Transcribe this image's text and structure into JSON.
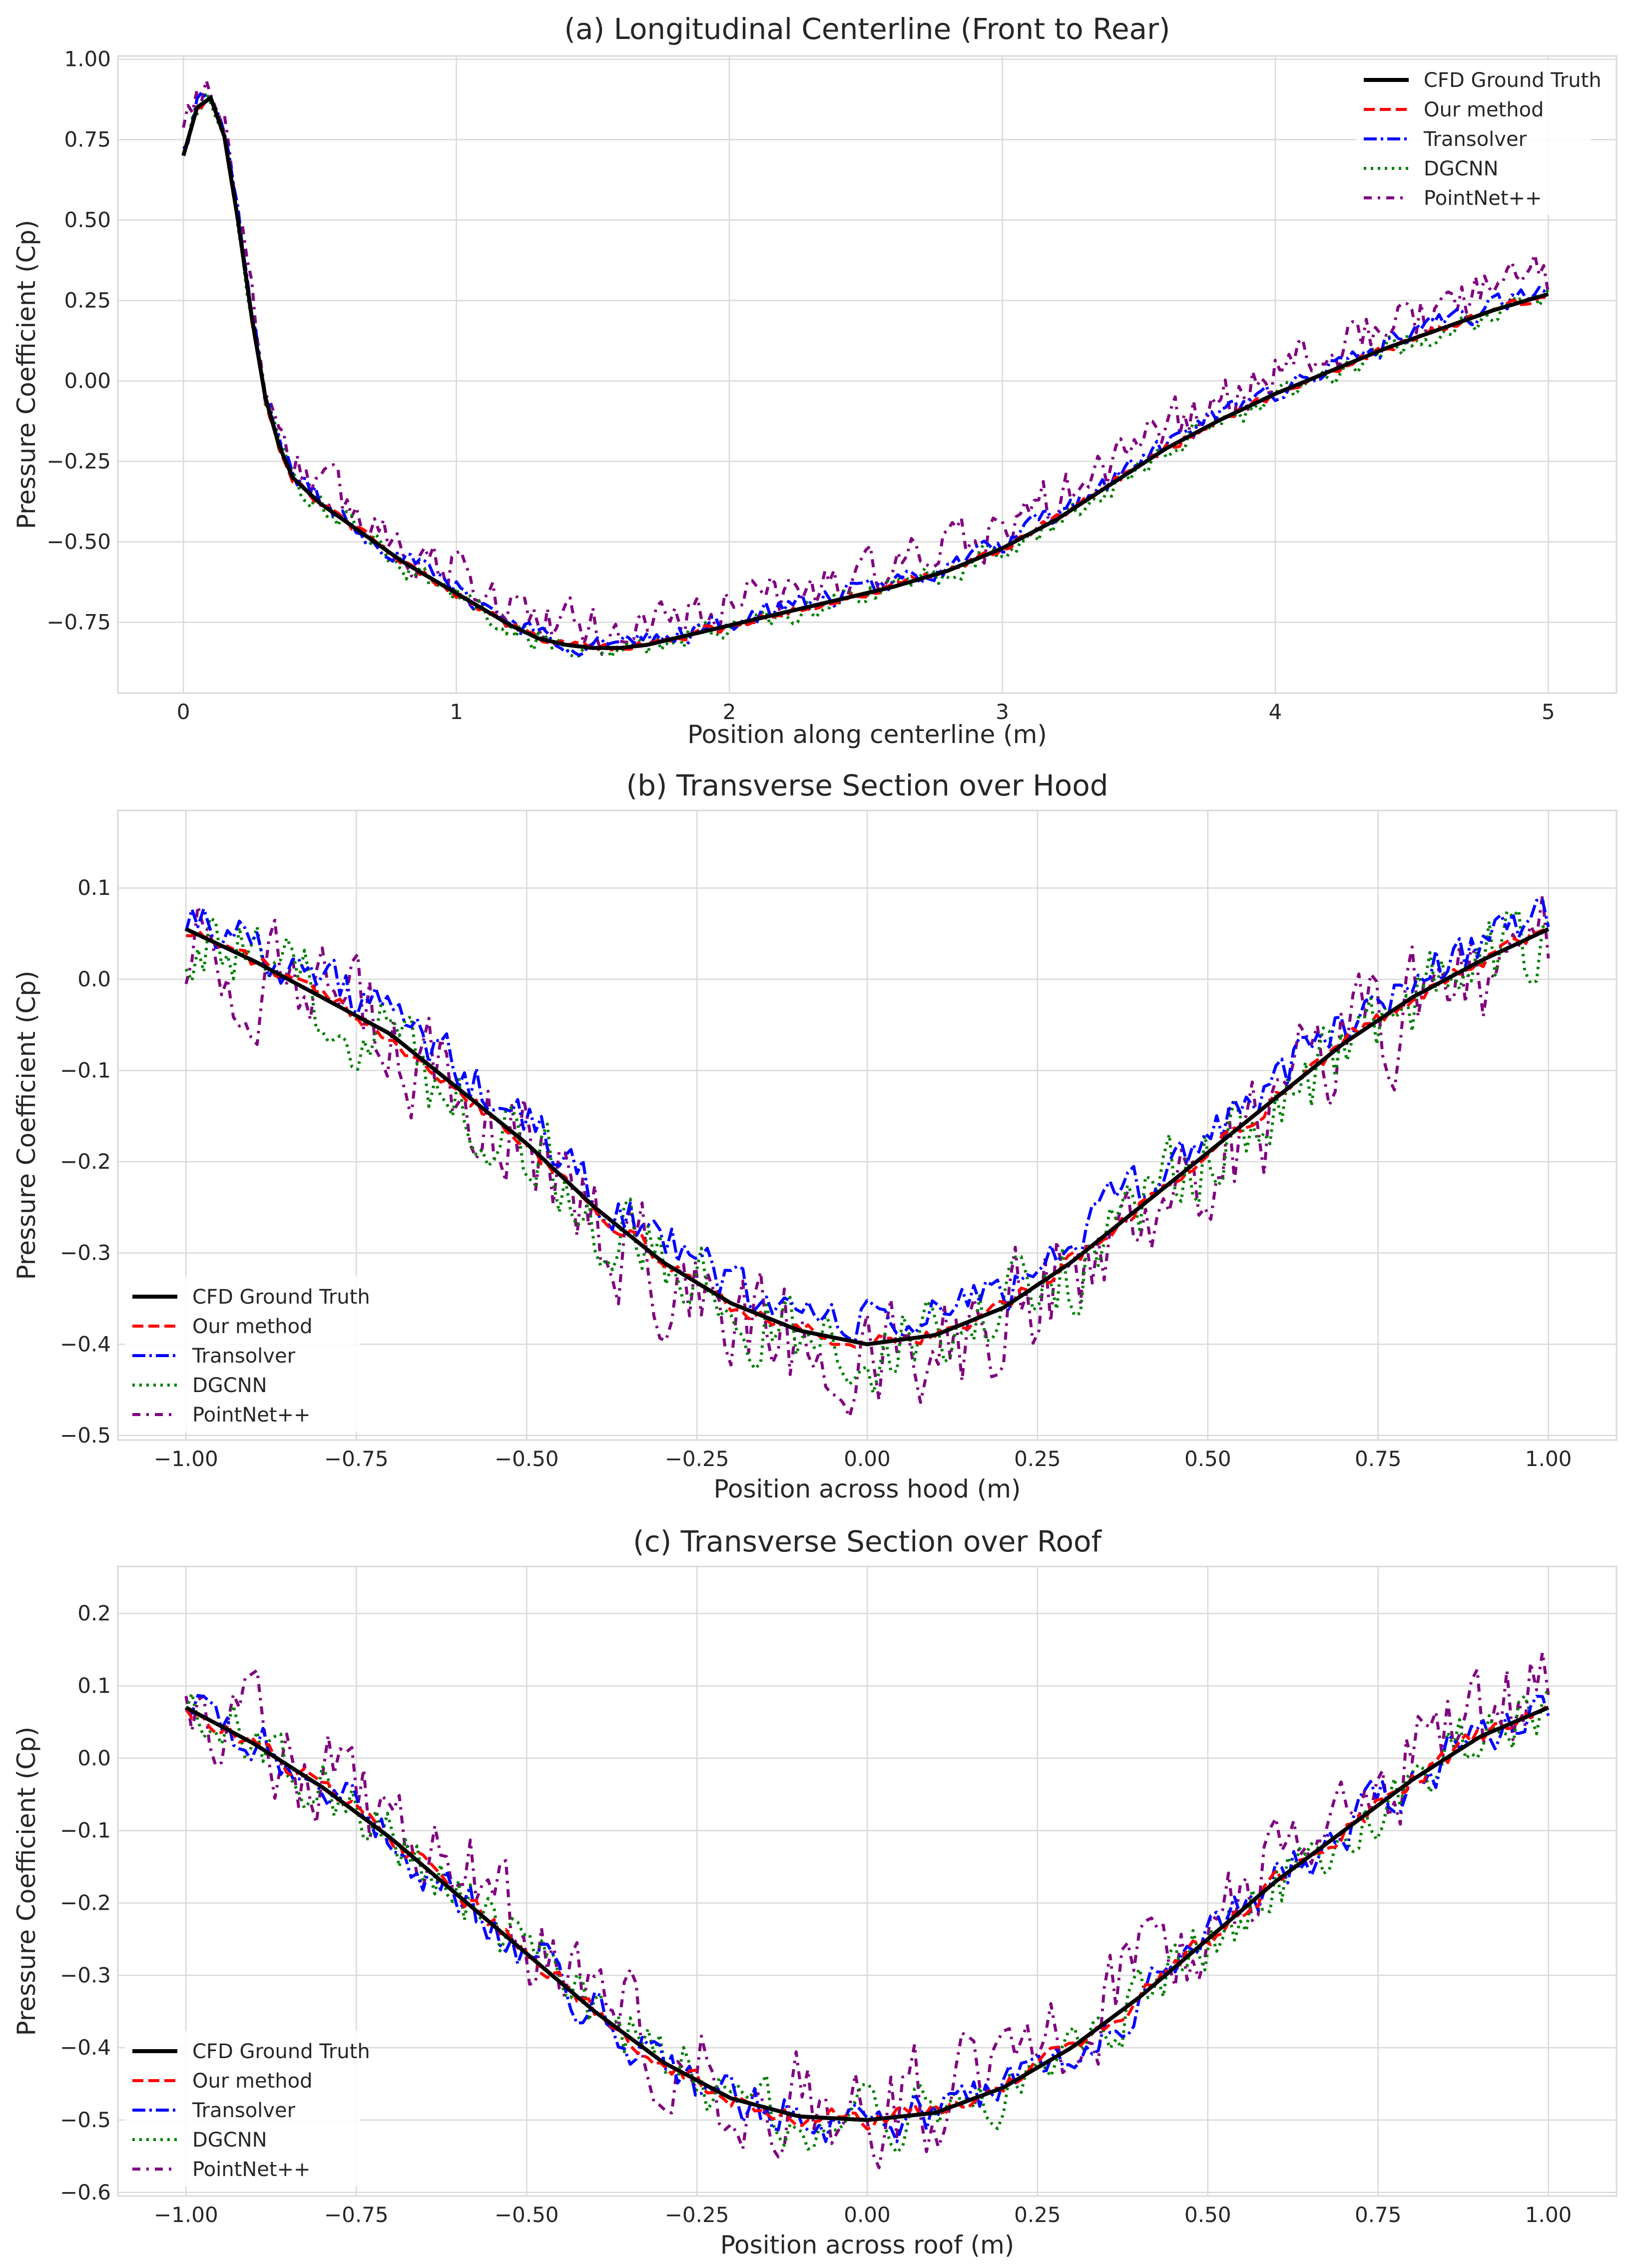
{
  "chart_data": [
    {
      "type": "line",
      "title": "(a) Longitudinal Centerline (Front to Rear)",
      "xlabel": "Position along centerline (m)",
      "ylabel": "Pressure Coefficient (Cp)",
      "xlim": [
        -0.24,
        5.25
      ],
      "ylim": [
        -0.97,
        1.01
      ],
      "xticks": [
        0,
        1,
        2,
        3,
        4,
        5
      ],
      "xtick_labels": [
        "0",
        "1",
        "2",
        "3",
        "4",
        "5"
      ],
      "yticks": [
        -0.75,
        -0.5,
        -0.25,
        0.0,
        0.25,
        0.5,
        0.75,
        1.0
      ],
      "ytick_labels": [
        "−0.75",
        "−0.50",
        "−0.25",
        "0.00",
        "0.25",
        "0.50",
        "0.75",
        "1.00"
      ],
      "legend_position": "top-right",
      "grid": true,
      "x": [
        0,
        0.05,
        0.1,
        0.15,
        0.2,
        0.25,
        0.3,
        0.35,
        0.4,
        0.5,
        0.6,
        0.7,
        0.8,
        0.9,
        1.0,
        1.1,
        1.2,
        1.3,
        1.4,
        1.5,
        1.6,
        1.7,
        1.8,
        1.9,
        2.0,
        2.2,
        2.4,
        2.6,
        2.8,
        3.0,
        3.2,
        3.4,
        3.6,
        3.8,
        4.0,
        4.2,
        4.4,
        4.6,
        4.8,
        5.0
      ],
      "series": [
        {
          "name": "CFD Ground Truth",
          "color": "#000000",
          "style": "solid",
          "noise": 0,
          "bias": 0,
          "values": [
            0.7,
            0.85,
            0.88,
            0.76,
            0.5,
            0.2,
            -0.05,
            -0.2,
            -0.3,
            -0.38,
            -0.44,
            -0.5,
            -0.56,
            -0.61,
            -0.66,
            -0.71,
            -0.76,
            -0.8,
            -0.82,
            -0.83,
            -0.83,
            -0.82,
            -0.8,
            -0.78,
            -0.76,
            -0.72,
            -0.68,
            -0.64,
            -0.59,
            -0.52,
            -0.43,
            -0.32,
            -0.21,
            -0.12,
            -0.04,
            0.03,
            0.1,
            0.16,
            0.22,
            0.27
          ]
        },
        {
          "name": "Our method",
          "color": "#ff0000",
          "style": "dashed",
          "noise": 0.012,
          "bias": 0
        },
        {
          "name": "Transolver",
          "color": "#0000ff",
          "style": "dashdot",
          "noise": 0.03,
          "bias": 0.012
        },
        {
          "name": "DGCNN",
          "color": "#008000",
          "style": "dotted",
          "noise": 0.035,
          "bias": -0.005
        },
        {
          "name": "PointNet++",
          "color": "#800080",
          "style": "loosedashdot",
          "noise": 0.07,
          "bias": 0.06
        }
      ]
    },
    {
      "type": "line",
      "title": "(b) Transverse Section over Hood",
      "xlabel": "Position across hood (m)",
      "ylabel": "Pressure Coefficient (Cp)",
      "xlim": [
        -1.1,
        1.1
      ],
      "ylim": [
        -0.505,
        0.185
      ],
      "xticks": [
        -1.0,
        -0.75,
        -0.5,
        -0.25,
        0.0,
        0.25,
        0.5,
        0.75,
        1.0
      ],
      "xtick_labels": [
        "−1.00",
        "−0.75",
        "−0.50",
        "−0.25",
        "0.00",
        "0.25",
        "0.50",
        "0.75",
        "1.00"
      ],
      "yticks": [
        -0.5,
        -0.4,
        -0.3,
        -0.2,
        -0.1,
        0.0,
        0.1
      ],
      "ytick_labels": [
        "−0.5",
        "−0.4",
        "−0.3",
        "−0.2",
        "−0.1",
        "0.0",
        "0.1"
      ],
      "legend_position": "bottom-left",
      "grid": true,
      "x": [
        -1.0,
        -0.9,
        -0.8,
        -0.7,
        -0.6,
        -0.5,
        -0.4,
        -0.3,
        -0.2,
        -0.1,
        0.0,
        0.1,
        0.2,
        0.3,
        0.4,
        0.5,
        0.6,
        0.7,
        0.8,
        0.9,
        1.0
      ],
      "series": [
        {
          "name": "CFD Ground Truth",
          "color": "#000000",
          "style": "solid",
          "noise": 0,
          "bias": 0,
          "values": [
            0.055,
            0.02,
            -0.02,
            -0.06,
            -0.12,
            -0.18,
            -0.25,
            -0.31,
            -0.355,
            -0.385,
            -0.4,
            -0.39,
            -0.36,
            -0.31,
            -0.25,
            -0.19,
            -0.13,
            -0.07,
            -0.02,
            0.02,
            0.055
          ]
        },
        {
          "name": "Our method",
          "color": "#ff0000",
          "style": "dashed",
          "noise": 0.008,
          "bias": 0
        },
        {
          "name": "Transolver",
          "color": "#0000ff",
          "style": "dashdot",
          "noise": 0.025,
          "bias": 0.02
        },
        {
          "name": "DGCNN",
          "color": "#008000",
          "style": "dotted",
          "noise": 0.045,
          "bias": -0.005
        },
        {
          "name": "PointNet++",
          "color": "#800080",
          "style": "loosedashdot",
          "noise": 0.06,
          "bias": -0.01
        }
      ]
    },
    {
      "type": "line",
      "title": "(c) Transverse Section over Roof",
      "xlabel": "Position across roof (m)",
      "ylabel": "Pressure Coefficient (Cp)",
      "xlim": [
        -1.1,
        1.1
      ],
      "ylim": [
        -0.605,
        0.265
      ],
      "xticks": [
        -1.0,
        -0.75,
        -0.5,
        -0.25,
        0.0,
        0.25,
        0.5,
        0.75,
        1.0
      ],
      "xtick_labels": [
        "−1.00",
        "−0.75",
        "−0.50",
        "−0.25",
        "0.00",
        "0.25",
        "0.50",
        "0.75",
        "1.00"
      ],
      "yticks": [
        -0.6,
        -0.5,
        -0.4,
        -0.3,
        -0.2,
        -0.1,
        0.0,
        0.1,
        0.2
      ],
      "ytick_labels": [
        "−0.6",
        "−0.5",
        "−0.4",
        "−0.3",
        "−0.2",
        "−0.1",
        "0.0",
        "0.1",
        "0.2"
      ],
      "legend_position": "bottom-left",
      "grid": true,
      "x": [
        -1.0,
        -0.9,
        -0.8,
        -0.7,
        -0.6,
        -0.5,
        -0.4,
        -0.3,
        -0.2,
        -0.1,
        0.0,
        0.1,
        0.2,
        0.3,
        0.4,
        0.5,
        0.6,
        0.7,
        0.8,
        0.9,
        1.0
      ],
      "series": [
        {
          "name": "CFD Ground Truth",
          "color": "#000000",
          "style": "solid",
          "noise": 0,
          "bias": 0,
          "values": [
            0.07,
            0.02,
            -0.04,
            -0.11,
            -0.19,
            -0.27,
            -0.35,
            -0.42,
            -0.47,
            -0.495,
            -0.5,
            -0.49,
            -0.455,
            -0.4,
            -0.33,
            -0.25,
            -0.17,
            -0.1,
            -0.03,
            0.03,
            0.07
          ]
        },
        {
          "name": "Our method",
          "color": "#ff0000",
          "style": "dashed",
          "noise": 0.012,
          "bias": 0
        },
        {
          "name": "Transolver",
          "color": "#0000ff",
          "style": "dashdot",
          "noise": 0.03,
          "bias": 0.0
        },
        {
          "name": "DGCNN",
          "color": "#008000",
          "style": "dotted",
          "noise": 0.04,
          "bias": 0.0
        },
        {
          "name": "PointNet++",
          "color": "#800080",
          "style": "loosedashdot",
          "noise": 0.07,
          "bias": 0.02
        }
      ]
    }
  ]
}
